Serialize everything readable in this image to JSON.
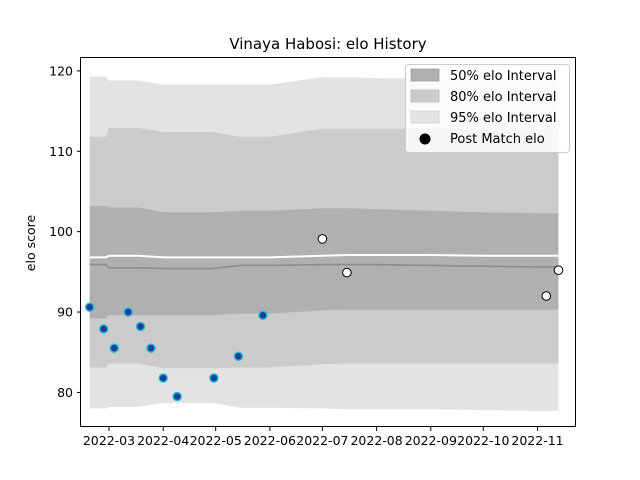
{
  "chart_data": {
    "type": "line",
    "title": "Vinaya Habosi: elo History",
    "xlabel": "",
    "ylabel": "elo score",
    "x_range": [
      "2022-02-13",
      "2022-11-23"
    ],
    "ylim": [
      75.7,
      121.6
    ],
    "x_ticks": [
      {
        "date": "2022-03-01",
        "label": "2022-03"
      },
      {
        "date": "2022-04-01",
        "label": "2022-04"
      },
      {
        "date": "2022-05-01",
        "label": "2022-05"
      },
      {
        "date": "2022-06-01",
        "label": "2022-06"
      },
      {
        "date": "2022-07-01",
        "label": "2022-07"
      },
      {
        "date": "2022-08-01",
        "label": "2022-08"
      },
      {
        "date": "2022-09-01",
        "label": "2022-09"
      },
      {
        "date": "2022-10-01",
        "label": "2022-10"
      },
      {
        "date": "2022-11-01",
        "label": "2022-11"
      }
    ],
    "y_ticks": [
      80,
      90,
      100,
      110,
      120
    ],
    "grid": false,
    "legend_position": "top-right",
    "legend": {
      "band50": "50% elo Interval",
      "band80": "80% elo Interval",
      "band95": "95% elo Interval",
      "points": "Post Match elo"
    },
    "colors": {
      "band50": "#b0b0b0",
      "band80": "#cbcbcb",
      "band95": "#e3e3e3",
      "mean_line": "#8c8c8c",
      "upper_line": "#ffffff",
      "early_point_fill": "#1f3f9f",
      "early_point_edge": "#17becf",
      "late_point_fill": "#ffffff",
      "late_point_edge": "#000000"
    },
    "band_dates": [
      "2022-02-18",
      "2022-02-27",
      "2022-03-01",
      "2022-03-18",
      "2022-04-01",
      "2022-04-29",
      "2022-05-15",
      "2022-06-01",
      "2022-07-01",
      "2022-07-15",
      "2022-08-01",
      "2022-09-01",
      "2022-10-01",
      "2022-11-01",
      "2022-11-13"
    ],
    "mean": [
      95.9,
      95.9,
      95.5,
      95.5,
      95.4,
      95.4,
      95.8,
      95.8,
      95.9,
      95.9,
      95.9,
      95.8,
      95.7,
      95.6,
      95.6
    ],
    "upper_mean": [
      96.8,
      96.8,
      97.0,
      97.0,
      96.8,
      96.8,
      96.8,
      96.8,
      97.0,
      97.1,
      97.1,
      97.1,
      97.0,
      97.0,
      97.0
    ],
    "band50_low": [
      89.2,
      89.2,
      89.6,
      89.6,
      89.6,
      89.6,
      89.8,
      89.8,
      90.2,
      90.3,
      90.3,
      90.3,
      90.3,
      90.3,
      90.3
    ],
    "band50_high": [
      103.2,
      103.2,
      103.0,
      103.0,
      102.4,
      102.4,
      102.6,
      102.6,
      102.9,
      102.9,
      102.8,
      102.6,
      102.4,
      102.3,
      102.3
    ],
    "band80_low": [
      83.1,
      83.1,
      83.6,
      83.6,
      83.0,
      83.0,
      83.1,
      83.1,
      83.5,
      83.6,
      83.6,
      83.6,
      83.6,
      83.6,
      83.6
    ],
    "band80_high": [
      111.8,
      111.8,
      112.9,
      112.9,
      112.4,
      112.4,
      111.8,
      111.8,
      112.8,
      112.8,
      112.8,
      112.8,
      112.8,
      112.8,
      112.8
    ],
    "band95_low": [
      78.0,
      78.0,
      78.2,
      78.2,
      78.7,
      78.7,
      78.1,
      78.1,
      78.0,
      77.9,
      77.9,
      77.9,
      77.8,
      77.7,
      77.7
    ],
    "band95_high": [
      119.3,
      119.3,
      118.8,
      118.8,
      118.3,
      118.3,
      118.3,
      118.3,
      119.2,
      119.2,
      119.1,
      119.0,
      119.0,
      119.0,
      119.0
    ],
    "points": [
      {
        "date": "2022-02-18",
        "elo": 90.6,
        "style": "early"
      },
      {
        "date": "2022-02-26",
        "elo": 87.9,
        "style": "early"
      },
      {
        "date": "2022-03-04",
        "elo": 85.5,
        "style": "early"
      },
      {
        "date": "2022-03-12",
        "elo": 90.0,
        "style": "early"
      },
      {
        "date": "2022-03-19",
        "elo": 88.2,
        "style": "early"
      },
      {
        "date": "2022-03-25",
        "elo": 85.5,
        "style": "early"
      },
      {
        "date": "2022-04-01",
        "elo": 81.8,
        "style": "early"
      },
      {
        "date": "2022-04-09",
        "elo": 79.5,
        "style": "early"
      },
      {
        "date": "2022-04-30",
        "elo": 81.8,
        "style": "early"
      },
      {
        "date": "2022-05-14",
        "elo": 84.5,
        "style": "early"
      },
      {
        "date": "2022-05-28",
        "elo": 89.6,
        "style": "early"
      },
      {
        "date": "2022-07-01",
        "elo": 99.1,
        "style": "late"
      },
      {
        "date": "2022-07-15",
        "elo": 94.9,
        "style": "late"
      },
      {
        "date": "2022-11-06",
        "elo": 92.0,
        "style": "late"
      },
      {
        "date": "2022-11-13",
        "elo": 95.2,
        "style": "late"
      }
    ]
  }
}
